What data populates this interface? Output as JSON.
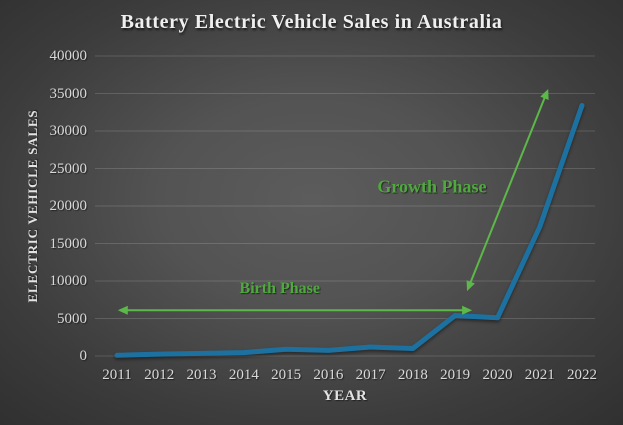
{
  "chart_data": {
    "type": "line",
    "title": "Battery Electric Vehicle Sales in Australia",
    "xlabel": "YEAR",
    "ylabel": "ELECTRIC VEHICLE SALES",
    "x": [
      2011,
      2012,
      2013,
      2014,
      2015,
      2016,
      2017,
      2018,
      2019,
      2020,
      2021,
      2022
    ],
    "values": [
      100,
      250,
      350,
      450,
      900,
      750,
      1200,
      1000,
      5400,
      5100,
      17200,
      33400
    ],
    "ylim": [
      0,
      40000
    ],
    "ytick_step": 5000,
    "grid": true,
    "legend": false,
    "line_color": "#1d71a0",
    "grid_color": "rgba(255,255,255,0.15)",
    "tick_color": "#d9d9d9",
    "title_color": "#efefef",
    "annotations": [
      {
        "label": "Birth Phase",
        "text_color": "#4fa93e",
        "arrow_color": "#5cb848",
        "font_size": 16,
        "label_at": {
          "x": 2014.85,
          "y": 9000
        },
        "arrow": {
          "x1": 2011.02,
          "y1": 6100,
          "x2": 2019.4,
          "y2": 6100,
          "double": true
        }
      },
      {
        "label": "Growth Phase",
        "text_color": "#4fa93e",
        "arrow_color": "#5cb848",
        "font_size": 18,
        "label_at": {
          "x": 2018.45,
          "y": 22600
        },
        "arrow": {
          "x1": 2019.28,
          "y1": 8650,
          "x2": 2021.2,
          "y2": 35600,
          "double": true
        }
      }
    ]
  }
}
